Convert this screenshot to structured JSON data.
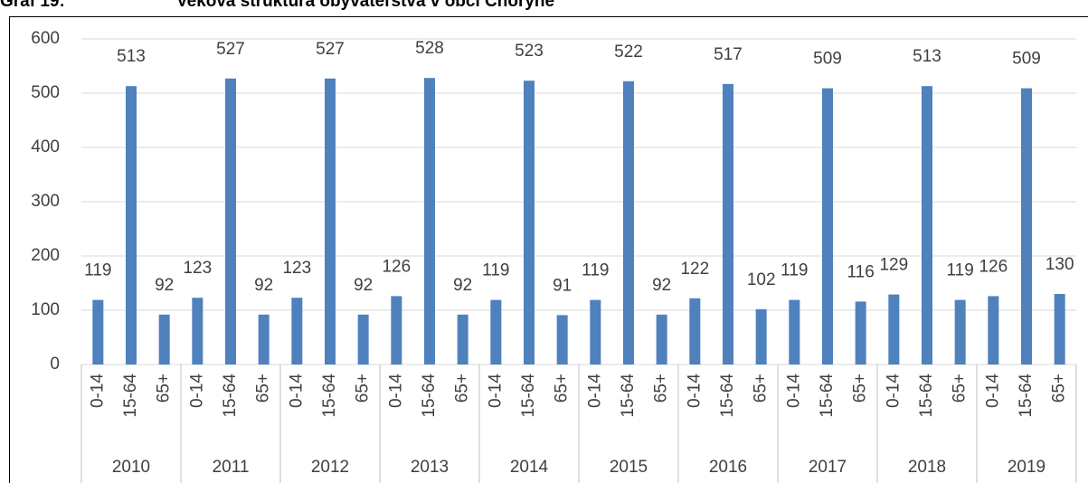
{
  "chart_data": {
    "type": "bar",
    "title_number": "Graf 19:",
    "title": "Veková štruktúra obyvateľstva v obci Choryně",
    "groups": [
      "2010",
      "2011",
      "2012",
      "2013",
      "2014",
      "2015",
      "2016",
      "2017",
      "2018",
      "2019"
    ],
    "categories": [
      "0-14",
      "15-64",
      "65+",
      "0-14",
      "15-64",
      "65+",
      "0-14",
      "15-64",
      "65+",
      "0-14",
      "15-64",
      "65+",
      "0-14",
      "15-64",
      "65+",
      "0-14",
      "15-64",
      "65+",
      "0-14",
      "15-64",
      "65+",
      "0-14",
      "15-64",
      "65+",
      "0-14",
      "15-64",
      "65+",
      "0-14",
      "15-64",
      "65+"
    ],
    "values": [
      119,
      513,
      92,
      123,
      527,
      92,
      123,
      527,
      92,
      126,
      528,
      92,
      119,
      523,
      91,
      119,
      522,
      92,
      122,
      517,
      102,
      119,
      509,
      116,
      129,
      513,
      119,
      126,
      509,
      130
    ],
    "color": "#4f81bd",
    "ylim": [
      0,
      600
    ],
    "yticks": [
      0,
      100,
      200,
      300,
      400,
      500,
      600
    ],
    "grid": true
  }
}
